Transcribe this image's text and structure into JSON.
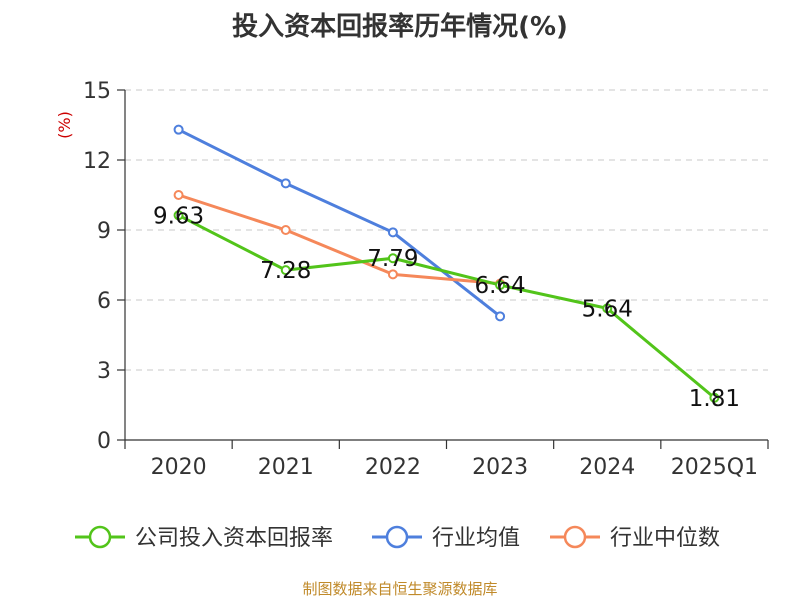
{
  "chart_data": {
    "type": "line",
    "title": "投入资本回报率历年情况(%)",
    "ylabel": "(%)",
    "categories": [
      "2020",
      "2021",
      "2022",
      "2023",
      "2024",
      "2025Q1"
    ],
    "ylim": [
      0,
      15
    ],
    "yticks": [
      0,
      3,
      6,
      9,
      12,
      15
    ],
    "grid": true,
    "legend_position": "bottom",
    "series": [
      {
        "name": "公司投入资本回报率",
        "color": "#52c41a",
        "values": [
          9.63,
          7.28,
          7.79,
          6.64,
          5.64,
          1.81
        ],
        "labels": [
          "9.63",
          "7.28",
          "7.79",
          "6.64",
          "5.64",
          "1.81"
        ]
      },
      {
        "name": "行业均值",
        "color": "#4e7fdd",
        "values": [
          13.3,
          11.0,
          8.9,
          5.3,
          null,
          null
        ]
      },
      {
        "name": "行业中位数",
        "color": "#f5885a",
        "values": [
          10.5,
          9.0,
          7.1,
          6.7,
          null,
          null
        ]
      }
    ]
  },
  "source": "制图数据来自恒生聚源数据库"
}
